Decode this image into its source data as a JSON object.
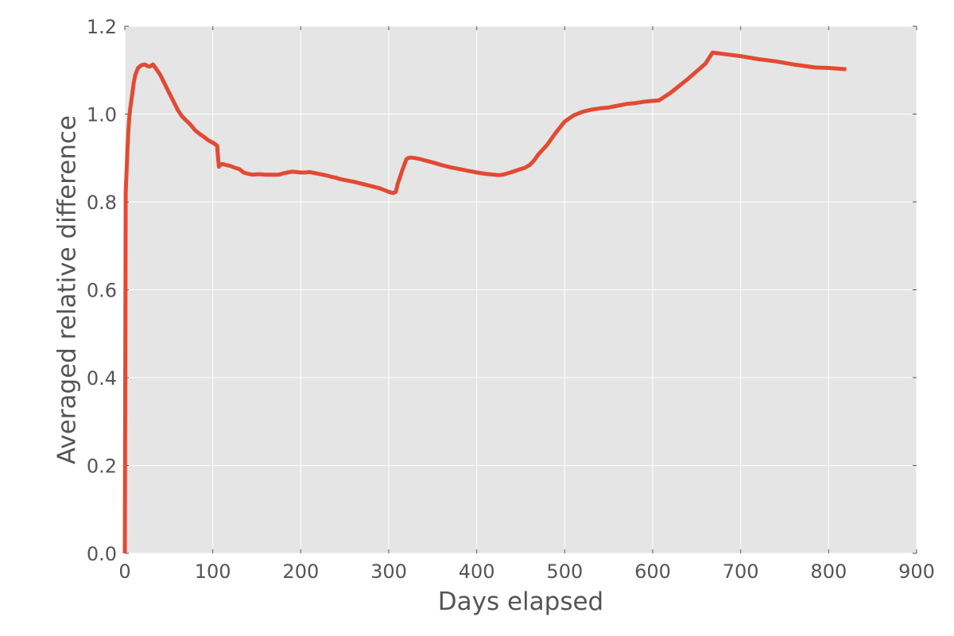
{
  "chart_data": {
    "type": "line",
    "title": "",
    "xlabel": "Days elapsed",
    "ylabel": "Averaged relative difference",
    "xlim": [
      0,
      900
    ],
    "ylim": [
      0,
      1.2
    ],
    "x_ticks": [
      0,
      100,
      200,
      300,
      400,
      500,
      600,
      700,
      800,
      900
    ],
    "y_ticks": [
      0.0,
      0.2,
      0.4,
      0.6,
      0.8,
      1.0,
      1.2
    ],
    "x_tick_labels": [
      "0",
      "100",
      "200",
      "300",
      "400",
      "500",
      "600",
      "700",
      "800",
      "900"
    ],
    "y_tick_labels": [
      "0.0",
      "0.2",
      "0.4",
      "0.6",
      "0.8",
      "1.0",
      "1.2"
    ],
    "grid": true,
    "background": "#e5e5e5",
    "grid_color": "#ffffff",
    "series": [
      {
        "color": "#e24a33",
        "x": [
          0,
          1,
          2,
          3,
          4,
          5,
          6,
          8,
          10,
          12,
          15,
          18,
          20,
          23,
          25,
          28,
          30,
          32,
          35,
          40,
          45,
          50,
          55,
          60,
          65,
          70,
          75,
          80,
          85,
          90,
          95,
          100,
          105,
          106,
          107,
          108,
          110,
          112,
          115,
          120,
          125,
          130,
          135,
          140,
          145,
          150,
          155,
          160,
          165,
          170,
          175,
          180,
          185,
          190,
          195,
          200,
          205,
          210,
          215,
          220,
          225,
          230,
          235,
          240,
          245,
          250,
          260,
          270,
          280,
          290,
          300,
          305,
          308,
          310,
          315,
          320,
          322,
          325,
          330,
          335,
          340,
          350,
          360,
          370,
          380,
          390,
          400,
          410,
          420,
          425,
          430,
          440,
          450,
          455,
          460,
          465,
          470,
          480,
          490,
          500,
          510,
          520,
          530,
          540,
          550,
          560,
          570,
          580,
          590,
          600,
          607,
          620,
          640,
          660,
          668,
          680,
          700,
          720,
          740,
          760,
          785,
          800,
          820
        ],
        "y": [
          0.0,
          0.82,
          0.87,
          0.92,
          0.96,
          0.99,
          1.01,
          1.04,
          1.07,
          1.09,
          1.105,
          1.11,
          1.112,
          1.113,
          1.11,
          1.108,
          1.11,
          1.113,
          1.105,
          1.09,
          1.07,
          1.05,
          1.03,
          1.01,
          0.995,
          0.985,
          0.975,
          0.963,
          0.955,
          0.948,
          0.94,
          0.935,
          0.928,
          0.9,
          0.88,
          0.883,
          0.886,
          0.886,
          0.884,
          0.882,
          0.878,
          0.875,
          0.867,
          0.864,
          0.862,
          0.863,
          0.863,
          0.862,
          0.862,
          0.862,
          0.862,
          0.865,
          0.867,
          0.869,
          0.868,
          0.867,
          0.867,
          0.868,
          0.866,
          0.864,
          0.862,
          0.86,
          0.857,
          0.855,
          0.852,
          0.85,
          0.846,
          0.841,
          0.836,
          0.831,
          0.823,
          0.82,
          0.823,
          0.84,
          0.87,
          0.897,
          0.9,
          0.901,
          0.9,
          0.898,
          0.895,
          0.89,
          0.884,
          0.879,
          0.875,
          0.871,
          0.867,
          0.864,
          0.862,
          0.861,
          0.862,
          0.868,
          0.875,
          0.878,
          0.884,
          0.894,
          0.908,
          0.93,
          0.958,
          0.983,
          0.997,
          1.005,
          1.01,
          1.013,
          1.015,
          1.019,
          1.023,
          1.025,
          1.028,
          1.03,
          1.031,
          1.048,
          1.08,
          1.115,
          1.14,
          1.137,
          1.132,
          1.125,
          1.12,
          1.113,
          1.106,
          1.105,
          1.102
        ]
      }
    ]
  }
}
